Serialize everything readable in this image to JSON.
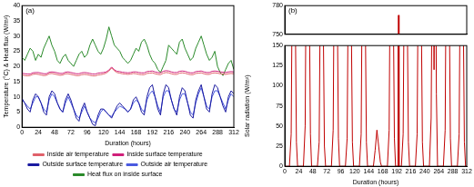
{
  "chart_data": [
    {
      "type": "line",
      "annotations": [
        "(a)"
      ],
      "x_label": "Duration (hours)",
      "y_label": "Temperature (°C) & Heat flux (W/m²)",
      "x": [
        0,
        4,
        8,
        12,
        16,
        20,
        24,
        28,
        32,
        36,
        40,
        44,
        48,
        52,
        56,
        60,
        64,
        68,
        72,
        76,
        80,
        84,
        88,
        92,
        96,
        100,
        104,
        108,
        112,
        116,
        120,
        124,
        128,
        132,
        136,
        140,
        144,
        148,
        152,
        156,
        160,
        164,
        168,
        172,
        176,
        180,
        184,
        188,
        192,
        196,
        200,
        204,
        208,
        212,
        216,
        220,
        224,
        228,
        232,
        236,
        240,
        244,
        248,
        252,
        256,
        260,
        264,
        268,
        272,
        276,
        280,
        284,
        288,
        292,
        296,
        300,
        304,
        308,
        312
      ],
      "xlim": [
        0,
        312
      ],
      "xticks": [
        0,
        24,
        48,
        72,
        96,
        120,
        144,
        168,
        192,
        216,
        240,
        264,
        288,
        312
      ],
      "ylim": [
        0,
        40
      ],
      "yticks": [
        0,
        5,
        10,
        15,
        20,
        25,
        30,
        35,
        40
      ],
      "grid": false,
      "legend": "bottom",
      "series": [
        {
          "name": "Inside air temperature",
          "color": "#e0606a",
          "values": [
            17.2,
            17.0,
            16.9,
            17.0,
            17.4,
            17.5,
            17.4,
            17.2,
            17.0,
            17.1,
            17.6,
            17.7,
            17.5,
            17.3,
            17.1,
            17.2,
            17.6,
            17.6,
            17.4,
            17.2,
            17.0,
            17.0,
            17.3,
            17.4,
            17.3,
            17.1,
            16.9,
            16.9,
            17.2,
            17.3,
            17.5,
            17.8,
            18.5,
            19.5,
            18.6,
            18.0,
            17.8,
            17.6,
            17.5,
            17.4,
            17.5,
            17.7,
            17.6,
            17.4,
            17.3,
            17.3,
            17.7,
            17.8,
            17.9,
            17.6,
            17.4,
            17.3,
            17.8,
            18.0,
            17.9,
            17.6,
            17.4,
            17.4,
            17.8,
            17.9,
            17.8,
            17.5,
            17.3,
            17.3,
            17.7,
            17.8,
            17.9,
            17.6,
            17.4,
            17.4,
            17.8,
            17.9,
            17.8,
            17.6,
            17.5,
            17.4,
            17.6,
            17.7,
            17.6
          ]
        },
        {
          "name": "Inside surface temperature",
          "color": "#d0207a",
          "values": [
            17.8,
            17.6,
            17.5,
            17.5,
            17.9,
            18.0,
            18.0,
            17.8,
            17.6,
            17.6,
            18.1,
            18.2,
            18.1,
            17.9,
            17.7,
            17.7,
            18.1,
            18.2,
            18.0,
            17.8,
            17.6,
            17.6,
            17.9,
            18.0,
            17.9,
            17.7,
            17.5,
            17.5,
            17.8,
            17.9,
            18.0,
            18.2,
            18.8,
            19.8,
            18.9,
            18.4,
            18.3,
            18.1,
            18.0,
            17.9,
            18.0,
            18.2,
            18.2,
            18.0,
            17.9,
            17.9,
            18.3,
            18.4,
            18.5,
            18.2,
            18.0,
            17.9,
            18.4,
            18.6,
            18.5,
            18.2,
            18.0,
            18.0,
            18.4,
            18.5,
            18.4,
            18.1,
            17.9,
            17.9,
            18.3,
            18.4,
            18.5,
            18.2,
            18.0,
            18.0,
            18.4,
            18.5,
            18.4,
            18.2,
            18.1,
            18.0,
            18.2,
            18.3,
            18.2
          ]
        },
        {
          "name": "Outside surface temperature",
          "color": "#1a1aa0",
          "values": [
            9.5,
            8,
            6,
            5,
            9,
            11,
            10,
            8,
            5,
            4,
            10,
            12,
            11,
            8,
            6,
            5,
            9,
            11,
            9,
            6,
            3,
            2,
            6,
            8,
            5,
            3,
            1,
            0.5,
            4,
            6,
            6,
            5,
            4,
            3,
            5,
            7,
            8,
            7,
            6,
            5,
            6,
            9,
            10,
            8,
            5,
            4,
            10,
            13,
            14,
            10,
            6,
            4,
            11,
            14,
            13,
            9,
            6,
            4,
            10,
            13,
            12,
            8,
            4,
            3,
            9,
            12,
            14,
            10,
            6,
            5,
            11,
            14,
            13,
            10,
            7,
            5,
            10,
            12,
            11
          ]
        },
        {
          "name": "Outside air temperature",
          "color": "#4a5ae0",
          "values": [
            9,
            8,
            7,
            6,
            8,
            10,
            10,
            8,
            6,
            5,
            9,
            11,
            10,
            8,
            6,
            5,
            8,
            10,
            8,
            6,
            4,
            3,
            5,
            7,
            5,
            3,
            2,
            1.5,
            3,
            5,
            6,
            5,
            4,
            3.5,
            5,
            6,
            7,
            6.5,
            6,
            5,
            6,
            8,
            9,
            8,
            6,
            5,
            9,
            11,
            12,
            10,
            7,
            5,
            10,
            12,
            12,
            9,
            6,
            5,
            9,
            11,
            11,
            8,
            5,
            4,
            8,
            11,
            13,
            10,
            7,
            6,
            10,
            12,
            12,
            10,
            8,
            6,
            9,
            11,
            10
          ]
        },
        {
          "name": "Heat flux on inside surface",
          "color": "#2a8a2a",
          "values": [
            23,
            22,
            24,
            26,
            25,
            22,
            24,
            23,
            26,
            28,
            30,
            27,
            25,
            22,
            21,
            23,
            24,
            22,
            21,
            20,
            22,
            24,
            25,
            23,
            24,
            27,
            29,
            27,
            25,
            24,
            26,
            29,
            33,
            30,
            27,
            26,
            25,
            23,
            22,
            21,
            22,
            24,
            26,
            25,
            28,
            29,
            27,
            24,
            22,
            21,
            19,
            18,
            20,
            22,
            27,
            26,
            25,
            24,
            28,
            29,
            26,
            24,
            22,
            23,
            26,
            28,
            30,
            27,
            24,
            22,
            23,
            25,
            20,
            18,
            17,
            19,
            21,
            22,
            19
          ]
        }
      ]
    },
    {
      "type": "line",
      "annotations": [
        "(b)"
      ],
      "x_label": "Duration (hours)",
      "y_label": "Solar radiation (W/m²)",
      "x": [
        0,
        8,
        11,
        14,
        17,
        20,
        22,
        24,
        32,
        35,
        38,
        41,
        44,
        46,
        48,
        56,
        59,
        62,
        65,
        68,
        70,
        72,
        80,
        83,
        86,
        89,
        92,
        94,
        96,
        104,
        107,
        110,
        113,
        116,
        118,
        120,
        128,
        131,
        134,
        137,
        140,
        142,
        144,
        152,
        155,
        158,
        161,
        164,
        166,
        168,
        176,
        179,
        182,
        185,
        188,
        190,
        192,
        194,
        195,
        196,
        200,
        203,
        206,
        209,
        212,
        214,
        216,
        224,
        227,
        230,
        233,
        236,
        238,
        240,
        248,
        251,
        254,
        256,
        258,
        260,
        262,
        264,
        272,
        275,
        278,
        281,
        284,
        286,
        288,
        296,
        299,
        302,
        305,
        308,
        310,
        312
      ],
      "values": [
        0,
        0,
        40,
        350,
        280,
        30,
        0,
        0,
        0,
        50,
        400,
        300,
        40,
        0,
        0,
        0,
        30,
        320,
        260,
        25,
        0,
        0,
        0,
        45,
        380,
        290,
        35,
        0,
        0,
        0,
        35,
        340,
        270,
        30,
        0,
        0,
        0,
        40,
        360,
        280,
        30,
        0,
        0,
        0,
        20,
        45,
        25,
        5,
        0,
        0,
        0,
        45,
        390,
        300,
        35,
        0,
        0,
        0,
        770,
        0,
        0,
        40,
        350,
        280,
        30,
        0,
        0,
        0,
        40,
        370,
        290,
        30,
        0,
        0,
        0,
        60,
        380,
        120,
        360,
        90,
        0,
        0,
        0,
        45,
        390,
        300,
        35,
        0,
        0,
        0,
        40,
        360,
        280,
        30,
        0,
        0
      ],
      "color": "#c00000",
      "xlim": [
        0,
        312
      ],
      "xticks": [
        0,
        24,
        48,
        72,
        96,
        120,
        144,
        168,
        192,
        216,
        240,
        264,
        288,
        312
      ],
      "ylim": [
        0,
        780
      ],
      "yticks": [
        0,
        25,
        50,
        75,
        100,
        125,
        150,
        750,
        780
      ],
      "y_break": [
        150,
        750
      ],
      "grid": false
    }
  ]
}
